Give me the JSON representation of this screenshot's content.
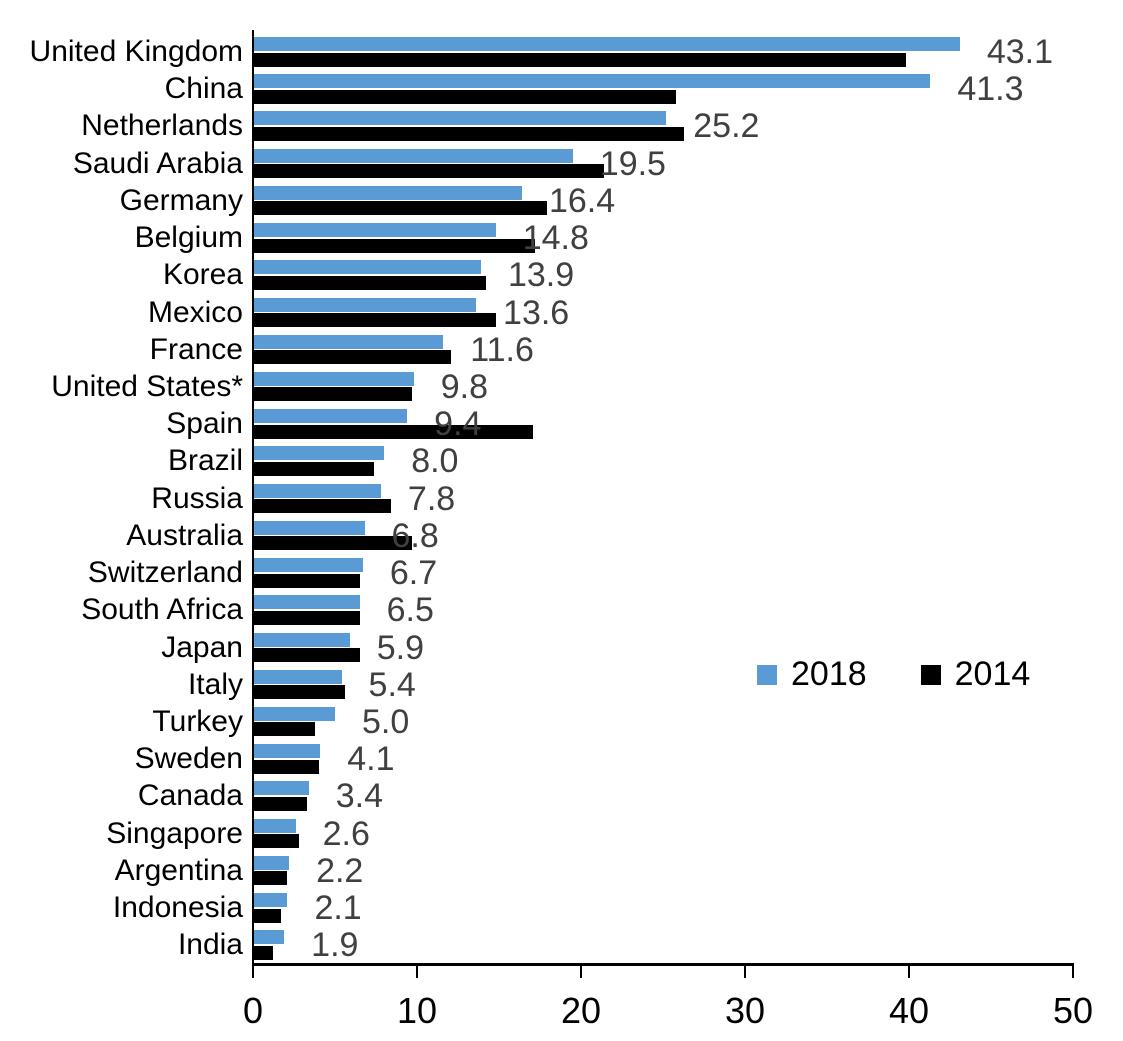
{
  "chart_data": {
    "type": "bar",
    "orientation": "horizontal",
    "title": "",
    "xlabel": "",
    "ylabel": "",
    "xlim": [
      0,
      50
    ],
    "xticks": [
      0,
      10,
      20,
      30,
      40,
      50
    ],
    "grid": false,
    "legend_position": "middle-right",
    "data_labels_series": "2018",
    "categories": [
      "United Kingdom",
      "China",
      "Netherlands",
      "Saudi Arabia",
      "Germany",
      "Belgium",
      "Korea",
      "Mexico",
      "France",
      "United States*",
      "Spain",
      "Brazil",
      "Russia",
      "Australia",
      "Switzerland",
      "South Africa",
      "Japan",
      "Italy",
      "Turkey",
      "Sweden",
      "Canada",
      "Singapore",
      "Argentina",
      "Indonesia",
      "India"
    ],
    "series": [
      {
        "name": "2018",
        "color": "#5B9BD5",
        "values": [
          43.1,
          41.3,
          25.2,
          19.5,
          16.4,
          14.8,
          13.9,
          13.6,
          11.6,
          9.8,
          9.4,
          8.0,
          7.8,
          6.8,
          6.7,
          6.5,
          5.9,
          5.4,
          5.0,
          4.1,
          3.4,
          2.6,
          2.2,
          2.1,
          1.9
        ]
      },
      {
        "name": "2014",
        "color": "#000000",
        "values": [
          39.8,
          25.8,
          26.3,
          21.4,
          17.9,
          17.2,
          14.2,
          14.8,
          12.1,
          9.7,
          17.1,
          7.4,
          8.4,
          9.7,
          6.5,
          6.5,
          6.5,
          5.6,
          3.8,
          4.0,
          3.3,
          2.8,
          2.1,
          1.7,
          1.2
        ]
      }
    ],
    "shown_data_labels": [
      "43.1",
      "41.3",
      "25.2",
      "19.5",
      "16.4",
      "14.8",
      "13.9",
      "13.6",
      "11.6",
      "9.8",
      "9.4",
      "8.0",
      "7.8",
      "6.8",
      "6.7",
      "6.5",
      "5.9",
      "5.4",
      "5.0",
      "4.1",
      "3.4",
      "2.6",
      "2.2",
      "2.1",
      "1.9"
    ],
    "tick_labels": [
      "0",
      "10",
      "20",
      "30",
      "40",
      "50"
    ]
  },
  "legend": {
    "item_2018": "2018",
    "item_2014": "2014"
  },
  "colors": {
    "series_2018": "#5B9BD5",
    "series_2014": "#000000",
    "value_label": "#404040",
    "axis": "#000000"
  }
}
